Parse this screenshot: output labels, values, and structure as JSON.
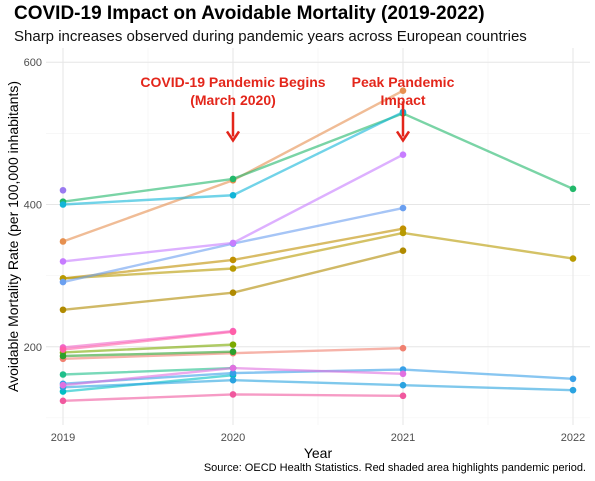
{
  "title": "COVID-19 Impact on Avoidable Mortality (2019-2022)",
  "subtitle": "Sharp increases observed during pandemic years across European countries",
  "caption": "Source: OECD Health Statistics. Red shaded area highlights pandemic period.",
  "chart_data": {
    "type": "line",
    "title": "COVID-19 Impact on Avoidable Mortality (2019-2022)",
    "subtitle": "Sharp increases observed during pandemic years across European countries",
    "xlabel": "Year",
    "ylabel": "Avoidable Mortality Rate (per 100,000 inhabitants)",
    "x": [
      2019,
      2020,
      2021,
      2022
    ],
    "x_tick_labels": [
      "2019",
      "2020",
      "2021",
      "2022"
    ],
    "xlim": [
      2018.9,
      2022.1
    ],
    "ylim": [
      90,
      620
    ],
    "y_ticks": [
      200,
      400,
      600
    ],
    "y_tick_labels": [
      "200",
      "400",
      "600"
    ],
    "grid": true,
    "legend": "none",
    "annotations": [
      {
        "text": "COVID-19 Pandemic Begins\n(March 2020)",
        "x": 2020,
        "y": 565,
        "arrow_from": 530,
        "arrow_to": 490
      },
      {
        "text": "Peak Pandemic\nImpact",
        "x": 2021,
        "y": 565,
        "arrow_from": 545,
        "arrow_to": 490
      }
    ],
    "annotation_color": "#e3261b",
    "series": [
      {
        "color": "#f08070",
        "values": [
          183,
          191,
          198,
          null
        ]
      },
      {
        "color": "#e69050",
        "values": [
          348,
          434,
          560,
          null
        ]
      },
      {
        "color": "#c09000",
        "values": [
          296,
          322,
          366,
          null
        ]
      },
      {
        "color": "#b89a00",
        "values": [
          296,
          310,
          360,
          324
        ]
      },
      {
        "color": "#b08a00",
        "values": [
          252,
          276,
          335,
          null
        ]
      },
      {
        "color": "#7caa00",
        "values": [
          192,
          203,
          null,
          null
        ]
      },
      {
        "color": "#2ca02c",
        "values": [
          187,
          193,
          null,
          null
        ]
      },
      {
        "color": "#22b86a",
        "values": [
          404,
          436,
          528,
          422
        ]
      },
      {
        "color": "#1fbf8a",
        "values": [
          161,
          170,
          null,
          null
        ]
      },
      {
        "color": "#00bfc4",
        "values": [
          137,
          160,
          null,
          null
        ]
      },
      {
        "color": "#12b5d8",
        "values": [
          400,
          413,
          530,
          null
        ]
      },
      {
        "color": "#2aa3e0",
        "values": [
          143,
          153,
          146,
          139
        ]
      },
      {
        "color": "#38a0e8",
        "values": [
          148,
          163,
          168,
          155
        ]
      },
      {
        "color": "#6a9ff0",
        "values": [
          291,
          345,
          395,
          null
        ]
      },
      {
        "color": "#9a7af0",
        "values": [
          420,
          null,
          null,
          null
        ]
      },
      {
        "color": "#c77cff",
        "values": [
          320,
          346,
          470,
          null
        ]
      },
      {
        "color": "#e070e0",
        "values": [
          146,
          170,
          162,
          null
        ]
      },
      {
        "color": "#f066c8",
        "values": [
          199,
          222,
          null,
          null
        ]
      },
      {
        "color": "#ff5fa8",
        "values": [
          196,
          221,
          null,
          null
        ]
      },
      {
        "color": "#f0589e",
        "values": [
          124,
          133,
          131,
          null
        ]
      }
    ]
  }
}
